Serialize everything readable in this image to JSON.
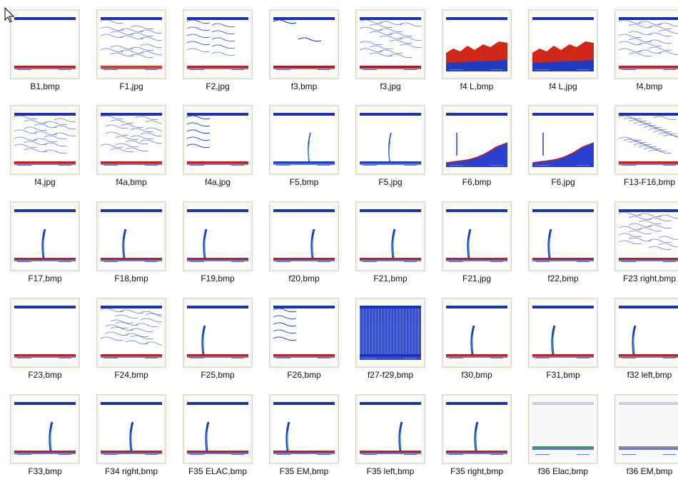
{
  "files": [
    {
      "name": "B1,bmp",
      "style": "whiteband",
      "color": "#c41e1e"
    },
    {
      "name": "F1,jpg",
      "style": "noisy",
      "color": "#d04020"
    },
    {
      "name": "F2,jpg",
      "style": "noisy",
      "color": "#c41e1e"
    },
    {
      "name": "f3,bmp",
      "style": "noisy",
      "color": "#b01818"
    },
    {
      "name": "f3,jpg",
      "style": "noisy",
      "color": "#b01818"
    },
    {
      "name": "f4 L,bmp",
      "style": "redsea",
      "color": "#d02818"
    },
    {
      "name": "f4 L,jpg",
      "style": "redsea",
      "color": "#d02818"
    },
    {
      "name": "f4,bmp",
      "style": "noisy",
      "color": "#c41e1e"
    },
    {
      "name": "f4,jpg",
      "style": "noisy",
      "color": "#c41e1e"
    },
    {
      "name": "f4a,bmp",
      "style": "noisy",
      "color": "#c41e1e"
    },
    {
      "name": "f4a,jpg",
      "style": "noisy",
      "color": "#c41e1e"
    },
    {
      "name": "F5,bmp",
      "style": "spike",
      "color": "#1e3cc4"
    },
    {
      "name": "F5,jpg",
      "style": "spike",
      "color": "#1e3cc4"
    },
    {
      "name": "F6,bmp",
      "style": "slope",
      "color": "#1e3cc4"
    },
    {
      "name": "F6,jpg",
      "style": "slope",
      "color": "#1e3cc4"
    },
    {
      "name": "F13-F16,bmp",
      "style": "noisy",
      "color": "#c41e1e"
    },
    {
      "name": "F17,bmp",
      "style": "plume",
      "color": "#c41e1e"
    },
    {
      "name": "F18,bmp",
      "style": "plume",
      "color": "#c41e1e"
    },
    {
      "name": "F19,bmp",
      "style": "plume",
      "color": "#c41e1e"
    },
    {
      "name": "f20,bmp",
      "style": "plume",
      "color": "#c41e1e"
    },
    {
      "name": "F21,bmp",
      "style": "plume",
      "color": "#c41e1e"
    },
    {
      "name": "F21,jpg",
      "style": "plume",
      "color": "#c41e1e"
    },
    {
      "name": "f22,bmp",
      "style": "plume",
      "color": "#c41e1e"
    },
    {
      "name": "F23 right,bmp",
      "style": "noisy",
      "color": "#c41e1e"
    },
    {
      "name": "F23,bmp",
      "style": "whiteband",
      "color": "#c41e1e"
    },
    {
      "name": "F24,bmp",
      "style": "noisy",
      "color": "#c41e1e"
    },
    {
      "name": "F25,bmp",
      "style": "plume",
      "color": "#c41e1e"
    },
    {
      "name": "F26,bmp",
      "style": "noisy",
      "color": "#c41e1e"
    },
    {
      "name": "f27-f29,bmp",
      "style": "dense",
      "color": "#1a30b8"
    },
    {
      "name": "f30,bmp",
      "style": "plume",
      "color": "#c41e1e"
    },
    {
      "name": "F31,bmp",
      "style": "plume",
      "color": "#c41e1e"
    },
    {
      "name": "f32 left,bmp",
      "style": "plume",
      "color": "#c41e1e"
    },
    {
      "name": "F33,bmp",
      "style": "plume",
      "color": "#c41e1e"
    },
    {
      "name": "F34 right,bmp",
      "style": "plume",
      "color": "#c41e1e"
    },
    {
      "name": "F35 ELAC,bmp",
      "style": "plume",
      "color": "#c41e1e"
    },
    {
      "name": "F35 EM,bmp",
      "style": "plume",
      "color": "#c41e1e"
    },
    {
      "name": "F35 left,bmp",
      "style": "plume",
      "color": "#c41e1e"
    },
    {
      "name": "F35 right,bmp",
      "style": "plume",
      "color": "#c41e1e"
    },
    {
      "name": "f36 Elac,bmp",
      "style": "pale",
      "color": "#2aa060"
    },
    {
      "name": "f36 EM,bmp",
      "style": "pale",
      "color": "#8a8a8a"
    }
  ]
}
